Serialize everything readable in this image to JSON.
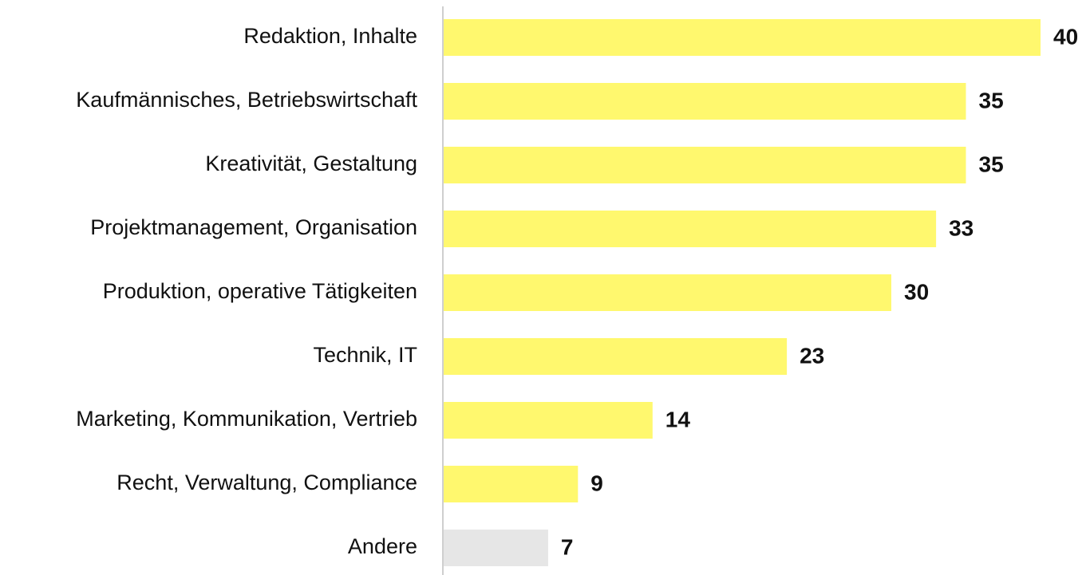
{
  "chart_data": {
    "type": "bar",
    "orientation": "horizontal",
    "categories": [
      "Redaktion, Inhalte",
      "Kaufmännisches, Betriebswirtschaft",
      "Kreativität, Gestaltung",
      "Projektmanagement, Organisation",
      "Produktion, operative Tätigkeiten",
      "Technik, IT",
      "Marketing, Kommunikation, Vertrieb",
      "Recht, Verwaltung, Compliance",
      "Andere"
    ],
    "values": [
      40,
      35,
      35,
      33,
      30,
      23,
      14,
      9,
      7
    ],
    "colors": [
      "#fff86e",
      "#fff86e",
      "#fff86e",
      "#fff86e",
      "#fff86e",
      "#fff86e",
      "#fff86e",
      "#fff86e",
      "#e6e6e6"
    ]
  }
}
